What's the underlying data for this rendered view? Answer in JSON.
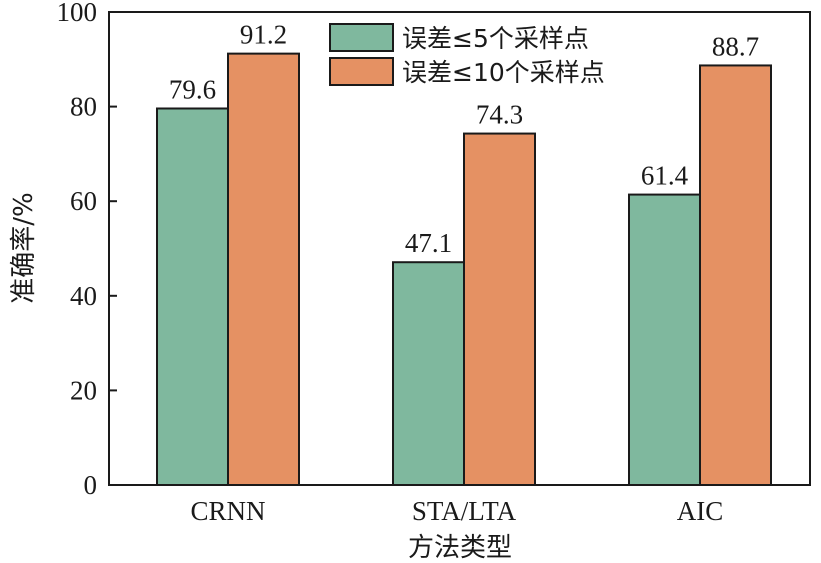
{
  "chart_data": {
    "type": "bar",
    "categories": [
      "CRNN",
      "STA/LTA",
      "AIC"
    ],
    "series": [
      {
        "name": "误差≤5个采样点",
        "values": [
          79.6,
          47.1,
          61.4
        ],
        "labels": [
          "79.6",
          "47.1",
          "61.4"
        ],
        "color": "#7fb89e"
      },
      {
        "name": "误差≤10个采样点",
        "values": [
          91.2,
          74.3,
          88.7
        ],
        "labels": [
          "91.2",
          "74.3",
          "88.7"
        ],
        "color": "#e59163"
      }
    ],
    "xlabel": "方法类型",
    "ylabel": "准确率/%",
    "ylim": [
      0,
      100
    ],
    "yticks": [
      "0",
      "20",
      "40",
      "60",
      "80",
      "100"
    ],
    "grid": false,
    "legend_position": "top-center"
  }
}
